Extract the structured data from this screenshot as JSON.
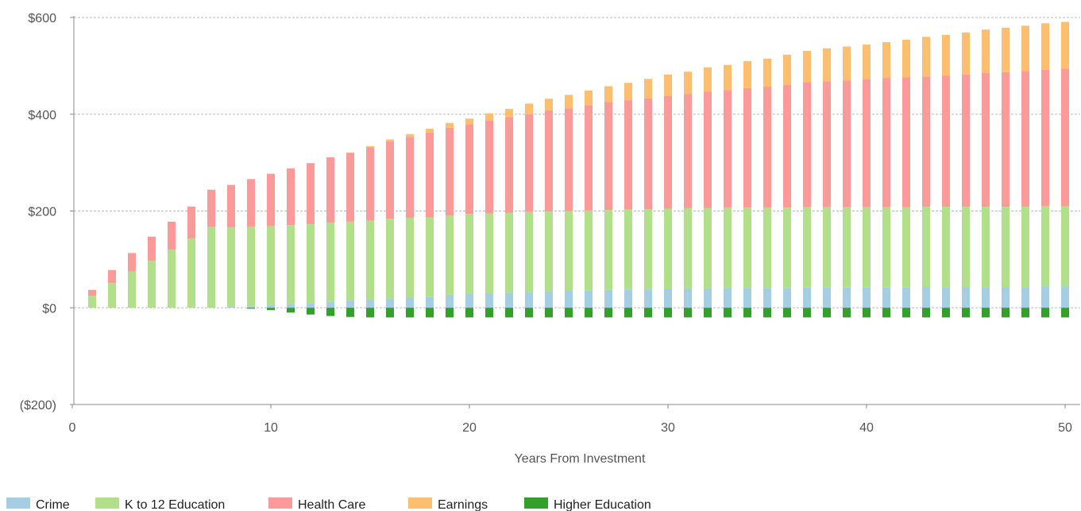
{
  "chart_data": {
    "type": "bar",
    "stacked": true,
    "xlabel": "Years From Investment",
    "ylabel": "",
    "xlim": [
      0,
      51
    ],
    "ylim": [
      -200,
      600
    ],
    "x_ticks": [
      0,
      10,
      20,
      30,
      40,
      50
    ],
    "y_ticks": [
      {
        "value": 600,
        "label": "$600"
      },
      {
        "value": 400,
        "label": "$400"
      },
      {
        "value": 200,
        "label": "$200"
      },
      {
        "value": 0,
        "label": "$0"
      },
      {
        "value": -200,
        "label": "($200)"
      }
    ],
    "grid": "horizontal-dashed",
    "legend_position": "bottom",
    "x": [
      1,
      2,
      3,
      4,
      5,
      6,
      7,
      8,
      9,
      10,
      11,
      12,
      13,
      14,
      15,
      16,
      17,
      18,
      19,
      20,
      21,
      22,
      23,
      24,
      25,
      26,
      27,
      28,
      29,
      30,
      31,
      32,
      33,
      34,
      35,
      36,
      37,
      38,
      39,
      40,
      41,
      42,
      43,
      44,
      45,
      46,
      47,
      48,
      49,
      50
    ],
    "series": [
      {
        "name": "Crime",
        "color": "#a6cee3",
        "values": [
          0,
          0,
          0,
          0,
          0,
          0,
          0,
          2,
          3,
          6,
          8,
          10,
          13,
          15,
          17,
          19,
          21,
          23,
          27,
          29,
          30,
          31,
          33,
          34,
          35,
          36,
          37,
          38,
          38,
          39,
          40,
          40,
          41,
          41,
          41,
          41,
          42,
          42,
          42,
          42,
          42,
          42,
          43,
          43,
          43,
          43,
          43,
          43,
          44,
          44
        ]
      },
      {
        "name": "K to 12 Education",
        "color": "#b2df8a",
        "values": [
          25,
          51,
          75,
          97,
          120,
          143,
          167,
          164,
          165,
          163,
          163,
          163,
          163,
          163,
          163,
          165,
          165,
          164,
          164,
          165,
          165,
          165,
          165,
          165,
          165,
          165,
          165,
          165,
          166,
          166,
          166,
          166,
          166,
          166,
          166,
          166,
          166,
          166,
          166,
          166,
          166,
          166,
          166,
          166,
          166,
          166,
          166,
          166,
          166,
          166
        ]
      },
      {
        "name": "Health Care",
        "color": "#fb9a99",
        "values": [
          12,
          27,
          38,
          50,
          58,
          66,
          77,
          88,
          98,
          108,
          117,
          126,
          135,
          142,
          152,
          160,
          167,
          175,
          181,
          185,
          192,
          198,
          202,
          209,
          212,
          218,
          223,
          226,
          229,
          233,
          236,
          241,
          243,
          247,
          250,
          254,
          258,
          260,
          262,
          264,
          267,
          268,
          269,
          271,
          273,
          276,
          278,
          280,
          282,
          284
        ]
      },
      {
        "name": "Earnings",
        "color": "#fdbf6f",
        "values": [
          0,
          0,
          0,
          0,
          0,
          0,
          0,
          0,
          0,
          0,
          0,
          0,
          0,
          1,
          2,
          4,
          6,
          8,
          10,
          12,
          15,
          17,
          22,
          24,
          28,
          30,
          33,
          36,
          40,
          44,
          46,
          50,
          52,
          56,
          58,
          62,
          65,
          68,
          70,
          72,
          74,
          78,
          82,
          84,
          87,
          90,
          92,
          94,
          96,
          97
        ]
      },
      {
        "name": "Higher Education",
        "color": "#33a02c",
        "values": [
          0,
          0,
          0,
          0,
          0,
          0,
          0,
          0,
          -2,
          -5,
          -10,
          -14,
          -17,
          -19,
          -20,
          -20,
          -20,
          -20,
          -20,
          -20,
          -20,
          -20,
          -20,
          -20,
          -20,
          -20,
          -20,
          -20,
          -20,
          -20,
          -20,
          -20,
          -20,
          -20,
          -20,
          -20,
          -20,
          -20,
          -20,
          -20,
          -20,
          -20,
          -20,
          -20,
          -20,
          -20,
          -20,
          -20,
          -20,
          -20
        ]
      }
    ]
  },
  "colors": {
    "grid": "#bbbbbb",
    "axis": "#888888"
  }
}
